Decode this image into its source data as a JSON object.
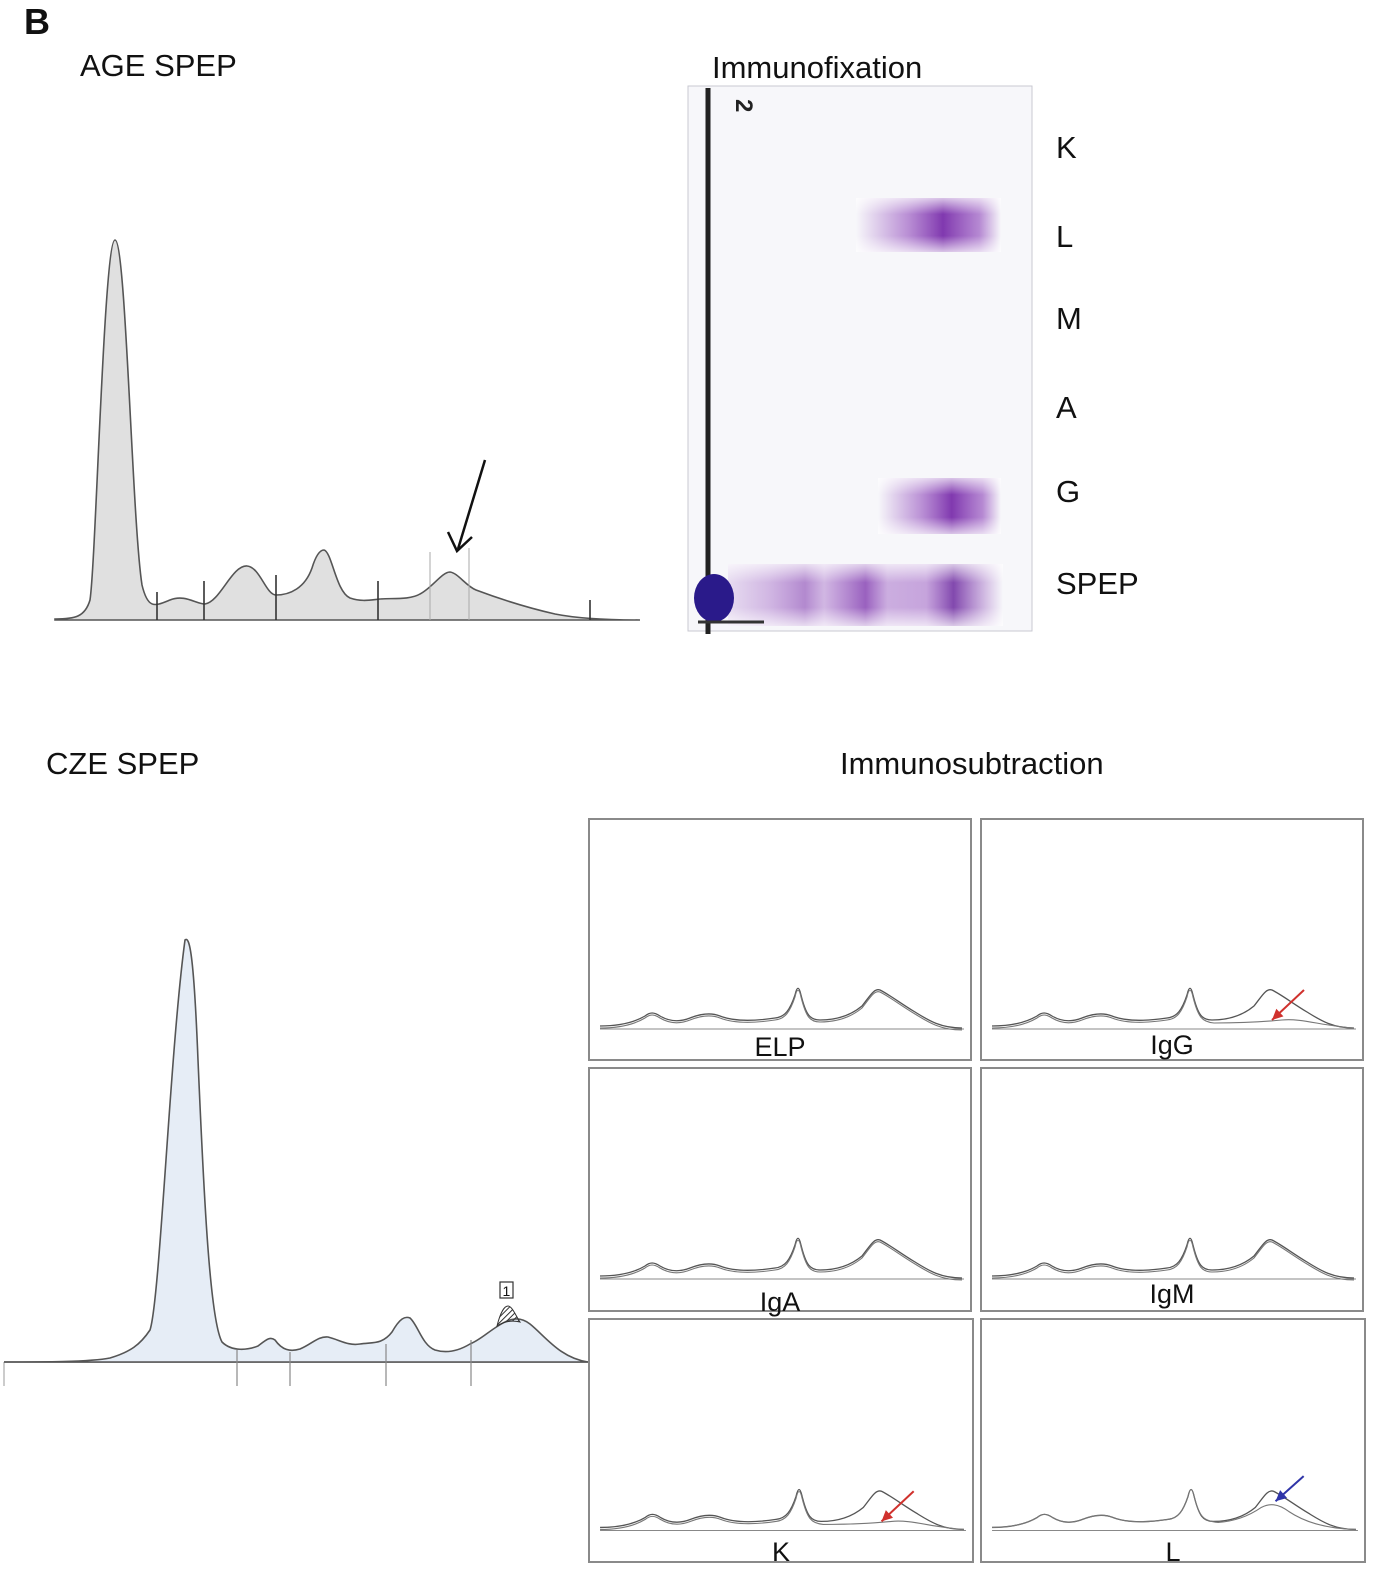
{
  "panel_letter": "B",
  "age_spep": {
    "title": "AGE SPEP"
  },
  "immunofixation": {
    "title": "Immunofixation",
    "lane_number": "2",
    "lanes": [
      "K",
      "L",
      "M",
      "A",
      "G",
      "SPEP"
    ],
    "band_color": "#8a3fb8"
  },
  "cze_spep": {
    "title": "CZE SPEP",
    "peak_marker": "1"
  },
  "immunosubtraction": {
    "title": "Immunosubtraction",
    "panels": [
      {
        "label": "ELP",
        "arrow": "none"
      },
      {
        "label": "IgG",
        "arrow": "red"
      },
      {
        "label": "IgA",
        "arrow": "none"
      },
      {
        "label": "IgM",
        "arrow": "none"
      },
      {
        "label": "K",
        "arrow": "red"
      },
      {
        "label": "L",
        "arrow": "blue"
      }
    ]
  },
  "colors": {
    "red_arrow": "#d0312d",
    "blue_arrow": "#2f35a8",
    "age_fill": "#e0e0e0",
    "cze_fill": "#e6edf6"
  }
}
